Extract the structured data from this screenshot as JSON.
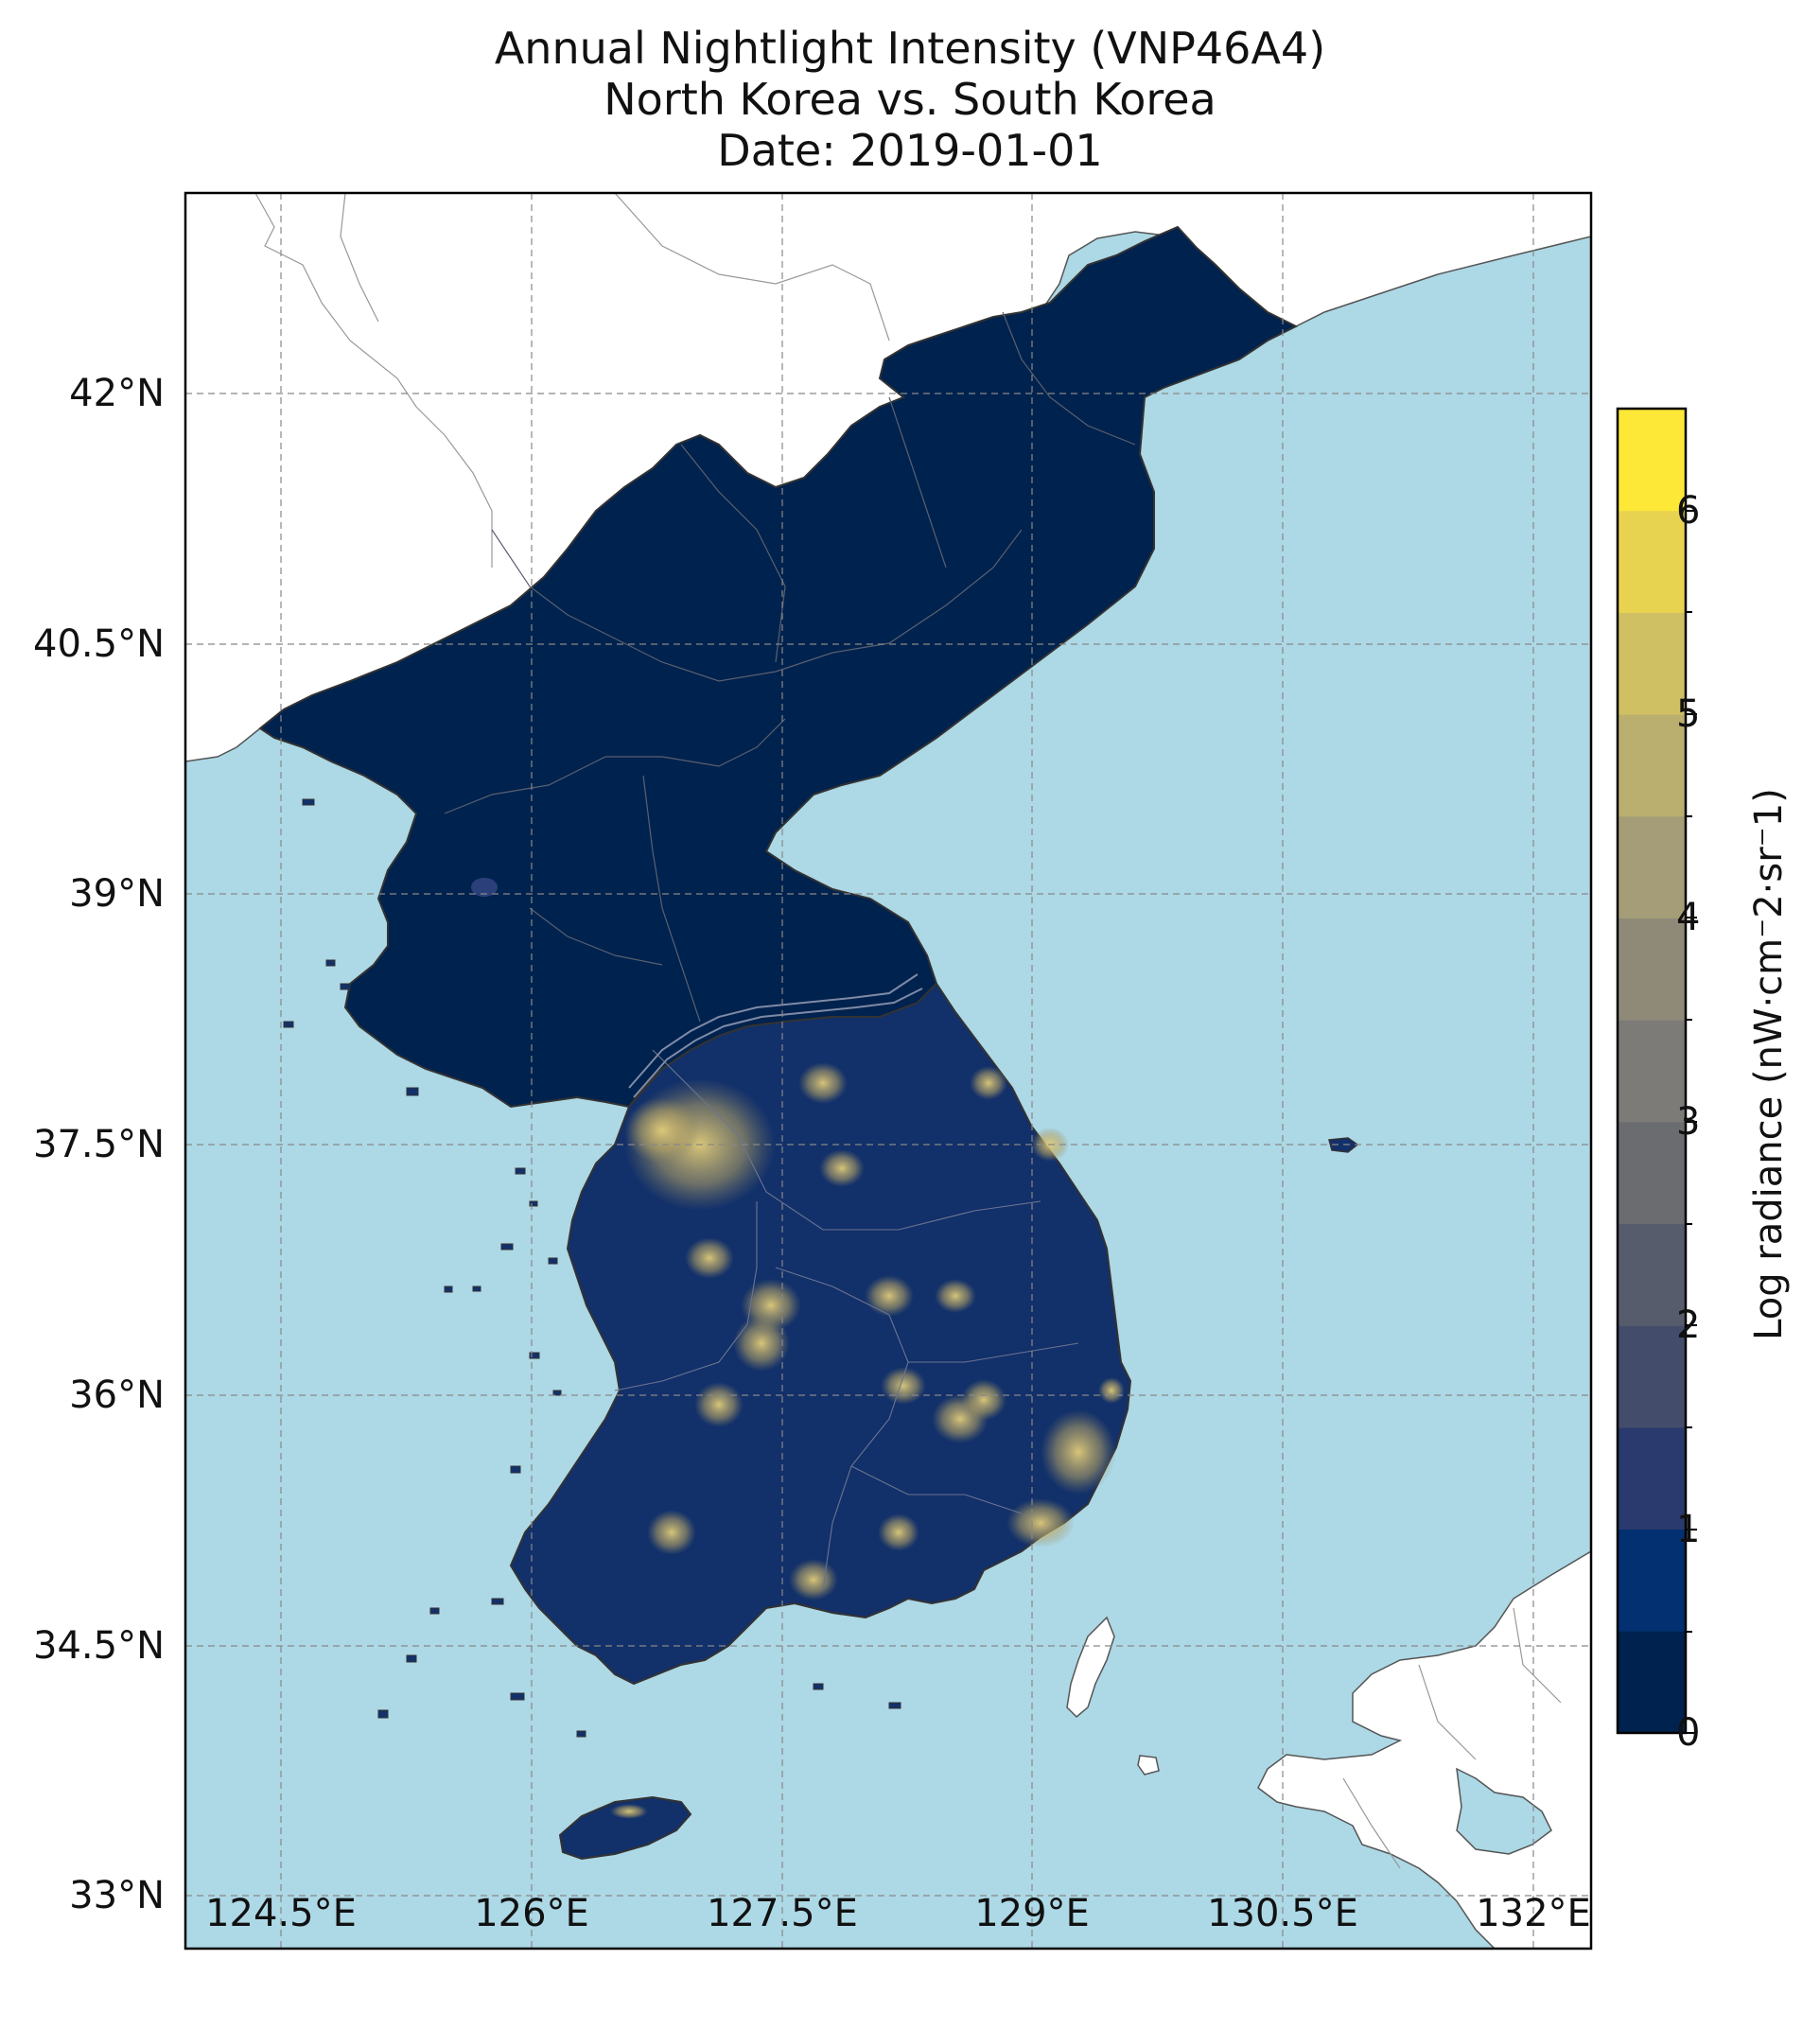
{
  "title": {
    "line1": "Annual Nightlight Intensity (VNP46A4)",
    "line2": "North Korea vs. South Korea",
    "line3": "Date: 2019-01-01"
  },
  "map": {
    "lat_ticks": [
      "42°N",
      "40.5°N",
      "39°N",
      "37.5°N",
      "36°N",
      "34.5°N",
      "33°N"
    ],
    "lon_ticks": [
      "124.5°E",
      "126°E",
      "127.5°E",
      "129°E",
      "130.5°E",
      "132°E"
    ],
    "gridlines": true,
    "colors": {
      "ocean": "#add8e6",
      "land": "#ffffff",
      "nk_fill": "#00224e",
      "sk_fill": "#12306a",
      "city_lights": "#d9c26a"
    }
  },
  "colorbar": {
    "label": "Log radiance (nW·cm⁻2·sr⁻1)",
    "ticks": [
      "0",
      "1",
      "2",
      "3",
      "4",
      "5",
      "6"
    ],
    "colors": [
      "#00224e",
      "#023070",
      "#2a3a6e",
      "#434d6b",
      "#575c6d",
      "#6a6c70",
      "#7c7b78",
      "#8f8a78",
      "#a49d77",
      "#bbaf6f",
      "#d0c064",
      "#e8d351",
      "#fde737"
    ]
  }
}
